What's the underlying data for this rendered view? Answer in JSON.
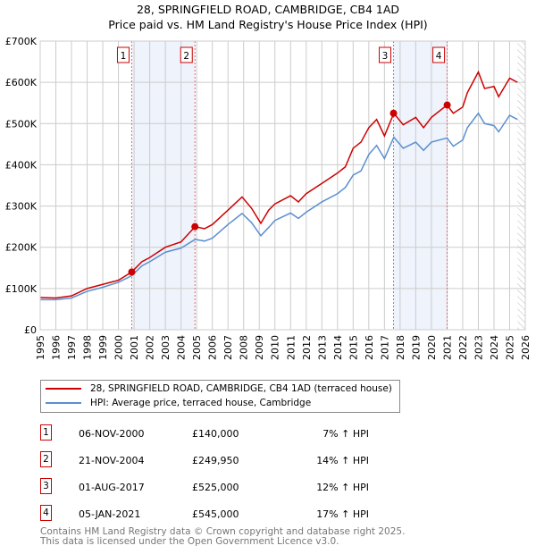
{
  "title": "28, SPRINGFIELD ROAD, CAMBRIDGE, CB4 1AD",
  "subtitle": "Price paid vs. HM Land Registry's House Price Index (HPI)",
  "chart_data": {
    "type": "line",
    "xlim": [
      1995,
      2026
    ],
    "ylim": [
      0,
      700000
    ],
    "yticks": [
      {
        "v": 0,
        "label": "£0"
      },
      {
        "v": 100000,
        "label": "£100K"
      },
      {
        "v": 200000,
        "label": "£200K"
      },
      {
        "v": 300000,
        "label": "£300K"
      },
      {
        "v": 400000,
        "label": "£400K"
      },
      {
        "v": 500000,
        "label": "£500K"
      },
      {
        "v": 600000,
        "label": "£600K"
      },
      {
        "v": 700000,
        "label": "£700K"
      }
    ],
    "xticks": [
      "1995",
      "1996",
      "1997",
      "1998",
      "1999",
      "2000",
      "2001",
      "2002",
      "2003",
      "2004",
      "2005",
      "2006",
      "2007",
      "2008",
      "2009",
      "2010",
      "2011",
      "2012",
      "2013",
      "2014",
      "2015",
      "2016",
      "2017",
      "2018",
      "2019",
      "2020",
      "2021",
      "2022",
      "2023",
      "2024",
      "2025",
      "2026"
    ],
    "grid": true,
    "colors": {
      "property": "#cc0000",
      "hpi": "#5b8fd0",
      "band": "#eef3fc"
    },
    "series": [
      {
        "name": "28, SPRINGFIELD ROAD, CAMBRIDGE, CB4 1AD (terraced house)",
        "x": [
          1995,
          1996,
          1997,
          1998,
          1999,
          2000,
          2000.85,
          2001.5,
          2002,
          2003,
          2004,
          2004.9,
          2005.5,
          2006,
          2007,
          2007.9,
          2008.5,
          2009.1,
          2009.6,
          2010,
          2011,
          2011.5,
          2012,
          2013,
          2014,
          2014.5,
          2015,
          2015.5,
          2016,
          2016.5,
          2017,
          2017.6,
          2018.2,
          2019,
          2019.5,
          2020,
          2021,
          2021.4,
          2022,
          2022.3,
          2023,
          2023.4,
          2024,
          2024.3,
          2025,
          2025.5
        ],
        "y": [
          78000,
          77000,
          82000,
          100000,
          110000,
          120000,
          140000,
          165000,
          175000,
          200000,
          213000,
          250000,
          245000,
          255000,
          290000,
          322000,
          295000,
          258000,
          290000,
          305000,
          325000,
          310000,
          330000,
          355000,
          380000,
          395000,
          440000,
          455000,
          490000,
          510000,
          470000,
          525000,
          497000,
          515000,
          490000,
          515000,
          545000,
          525000,
          540000,
          575000,
          625000,
          585000,
          590000,
          565000,
          610000,
          600000
        ]
      },
      {
        "name": "HPI: Average price, terraced house, Cambridge",
        "x": [
          1995,
          1996,
          1997,
          1998,
          1999,
          2000,
          2000.85,
          2001.5,
          2002,
          2003,
          2004,
          2004.9,
          2005.5,
          2006,
          2007,
          2007.9,
          2008.5,
          2009.1,
          2009.6,
          2010,
          2011,
          2011.5,
          2012,
          2013,
          2014,
          2014.5,
          2015,
          2015.5,
          2016,
          2016.5,
          2017,
          2017.6,
          2018.2,
          2019,
          2019.5,
          2020,
          2021,
          2021.4,
          2022,
          2022.3,
          2023,
          2023.4,
          2024,
          2024.3,
          2025,
          2025.5
        ],
        "y": [
          73000,
          73000,
          77000,
          93000,
          103000,
          115000,
          131000,
          155000,
          165000,
          188000,
          198000,
          219000,
          215000,
          222000,
          255000,
          282000,
          260000,
          228000,
          248000,
          265000,
          283000,
          270000,
          285000,
          310000,
          330000,
          345000,
          375000,
          385000,
          425000,
          447000,
          415000,
          467000,
          440000,
          455000,
          435000,
          455000,
          465000,
          445000,
          460000,
          490000,
          525000,
          500000,
          495000,
          480000,
          520000,
          510000
        ]
      }
    ],
    "sales": [
      {
        "n": "1",
        "x": 2000.85,
        "y": 140000
      },
      {
        "n": "2",
        "x": 2004.89,
        "y": 249950
      },
      {
        "n": "3",
        "x": 2017.58,
        "y": 525000
      },
      {
        "n": "4",
        "x": 2021.01,
        "y": 545000
      }
    ],
    "forecast_start": 2025.5
  },
  "legend": {
    "property": "28, SPRINGFIELD ROAD, CAMBRIDGE, CB4 1AD (terraced house)",
    "hpi": "HPI: Average price, terraced house, Cambridge"
  },
  "transactions": [
    {
      "n": "1",
      "date": "06-NOV-2000",
      "price": "£140,000",
      "hpi": "7% ↑ HPI"
    },
    {
      "n": "2",
      "date": "21-NOV-2004",
      "price": "£249,950",
      "hpi": "14% ↑ HPI"
    },
    {
      "n": "3",
      "date": "01-AUG-2017",
      "price": "£525,000",
      "hpi": "12% ↑ HPI"
    },
    {
      "n": "4",
      "date": "05-JAN-2021",
      "price": "£545,000",
      "hpi": "17% ↑ HPI"
    }
  ],
  "footer": [
    "Contains HM Land Registry data © Crown copyright and database right 2025.",
    "This data is licensed under the Open Government Licence v3.0."
  ]
}
